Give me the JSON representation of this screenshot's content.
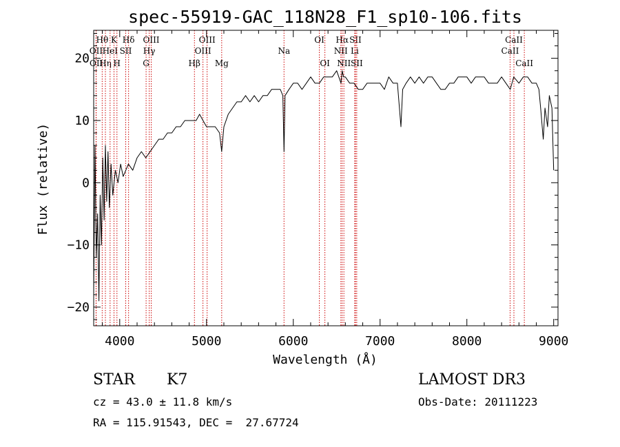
{
  "chart_data": {
    "type": "line",
    "title": "spec-55919-GAC_118N28_F1_sp10-106.fits",
    "xlabel": "Wavelength (Å)",
    "ylabel": "Flux (relative)",
    "xlim": [
      3700,
      9050
    ],
    "ylim": [
      -23,
      24.5
    ],
    "xticks": [
      4000,
      5000,
      6000,
      7000,
      8000,
      9000
    ],
    "yticks": [
      -20,
      -10,
      0,
      10,
      20
    ],
    "x_minor_step": 200,
    "y_minor_step": 2,
    "line_color": "#cc0000",
    "series": [
      {
        "name": "spectrum",
        "x": [
          3700,
          3715,
          3730,
          3745,
          3760,
          3775,
          3790,
          3805,
          3820,
          3835,
          3850,
          3865,
          3880,
          3900,
          3920,
          3950,
          3980,
          4010,
          4040,
          4070,
          4100,
          4150,
          4200,
          4250,
          4300,
          4350,
          4400,
          4450,
          4500,
          4550,
          4600,
          4650,
          4700,
          4750,
          4800,
          4850,
          4880,
          4920,
          4960,
          5000,
          5050,
          5100,
          5150,
          5175,
          5200,
          5250,
          5300,
          5350,
          5400,
          5450,
          5500,
          5550,
          5600,
          5650,
          5700,
          5750,
          5800,
          5850,
          5880,
          5893,
          5905,
          5950,
          6000,
          6050,
          6100,
          6150,
          6200,
          6250,
          6300,
          6350,
          6400,
          6450,
          6500,
          6550,
          6563,
          6580,
          6600,
          6650,
          6700,
          6750,
          6800,
          6850,
          6900,
          6950,
          7000,
          7050,
          7100,
          7150,
          7200,
          7240,
          7260,
          7300,
          7350,
          7400,
          7450,
          7500,
          7550,
          7600,
          7650,
          7700,
          7750,
          7800,
          7850,
          7900,
          7950,
          8000,
          8050,
          8100,
          8150,
          8200,
          8250,
          8300,
          8350,
          8400,
          8450,
          8500,
          8540,
          8600,
          8650,
          8700,
          8750,
          8800,
          8830,
          8850,
          8880,
          8900,
          8930,
          8950,
          8980,
          9000
        ],
        "y": [
          -18,
          6,
          -12,
          -5,
          -19,
          -2,
          -10,
          4,
          -6,
          6,
          -3,
          5,
          -4,
          3,
          -2,
          2,
          0,
          3,
          1,
          2,
          3,
          2,
          4,
          5,
          4,
          5,
          6,
          7,
          7,
          8,
          8,
          9,
          9,
          10,
          10,
          10,
          10,
          11,
          10,
          9,
          9,
          9,
          8,
          5,
          9,
          11,
          12,
          13,
          13,
          14,
          13,
          14,
          13,
          14,
          14,
          15,
          15,
          15,
          14,
          5,
          14,
          15,
          16,
          16,
          15,
          16,
          17,
          16,
          16,
          17,
          17,
          17,
          18,
          16,
          18,
          17,
          17,
          16,
          16,
          15,
          15,
          16,
          16,
          16,
          16,
          15,
          17,
          16,
          16,
          9,
          15,
          16,
          17,
          16,
          17,
          16,
          17,
          17,
          16,
          15,
          15,
          16,
          16,
          17,
          17,
          17,
          16,
          17,
          17,
          17,
          16,
          16,
          16,
          17,
          16,
          15,
          17,
          16,
          17,
          17,
          16,
          16,
          15,
          12,
          7,
          12,
          9,
          14,
          12,
          2
        ]
      }
    ],
    "spectral_lines": [
      {
        "label": "Hθ",
        "x": 3798,
        "row": 1
      },
      {
        "label": "OII",
        "x": 3727,
        "row": 2
      },
      {
        "label": "OII",
        "x": 3729,
        "row": 3
      },
      {
        "label": "Hη",
        "x": 3835,
        "row": 3
      },
      {
        "label": "K",
        "x": 3934,
        "row": 1
      },
      {
        "label": "HeI",
        "x": 3889,
        "row": 2
      },
      {
        "label": "SII",
        "x": 4069,
        "row": 2
      },
      {
        "label": "H",
        "x": 3968,
        "row": 3
      },
      {
        "label": "Hδ",
        "x": 4102,
        "row": 1
      },
      {
        "label": "OIII",
        "x": 4363,
        "row": 1
      },
      {
        "label": "Hγ",
        "x": 4340,
        "row": 2
      },
      {
        "label": "G",
        "x": 4304,
        "row": 3
      },
      {
        "label": "OIII",
        "x": 5007,
        "row": 1
      },
      {
        "label": "OIII",
        "x": 4959,
        "row": 2
      },
      {
        "label": "Hβ",
        "x": 4861,
        "row": 3
      },
      {
        "label": "Mg",
        "x": 5175,
        "row": 3
      },
      {
        "label": "Na",
        "x": 5893,
        "row": 2
      },
      {
        "label": "OI",
        "x": 6300,
        "row": 1
      },
      {
        "label": "OI",
        "x": 6364,
        "row": 3
      },
      {
        "label": "Hα",
        "x": 6563,
        "row": 1
      },
      {
        "label": "SII",
        "x": 6716,
        "row": 1
      },
      {
        "label": "NII",
        "x": 6548,
        "row": 2
      },
      {
        "label": "Li",
        "x": 6708,
        "row": 2
      },
      {
        "label": "NII",
        "x": 6583,
        "row": 3
      },
      {
        "label": "SII",
        "x": 6731,
        "row": 3
      },
      {
        "label": "CaII",
        "x": 8542,
        "row": 1
      },
      {
        "label": "CaII",
        "x": 8498,
        "row": 2
      },
      {
        "label": "CaII",
        "x": 8662,
        "row": 3
      }
    ]
  },
  "info": {
    "class_label": "STAR",
    "subclass": "K7",
    "survey": "LAMOST DR3",
    "cz": "cz = 43.0 ± 11.8 km/s",
    "obs_date": "Obs-Date: 20111223",
    "coords": "RA = 115.91543, DEC =  27.67724"
  }
}
